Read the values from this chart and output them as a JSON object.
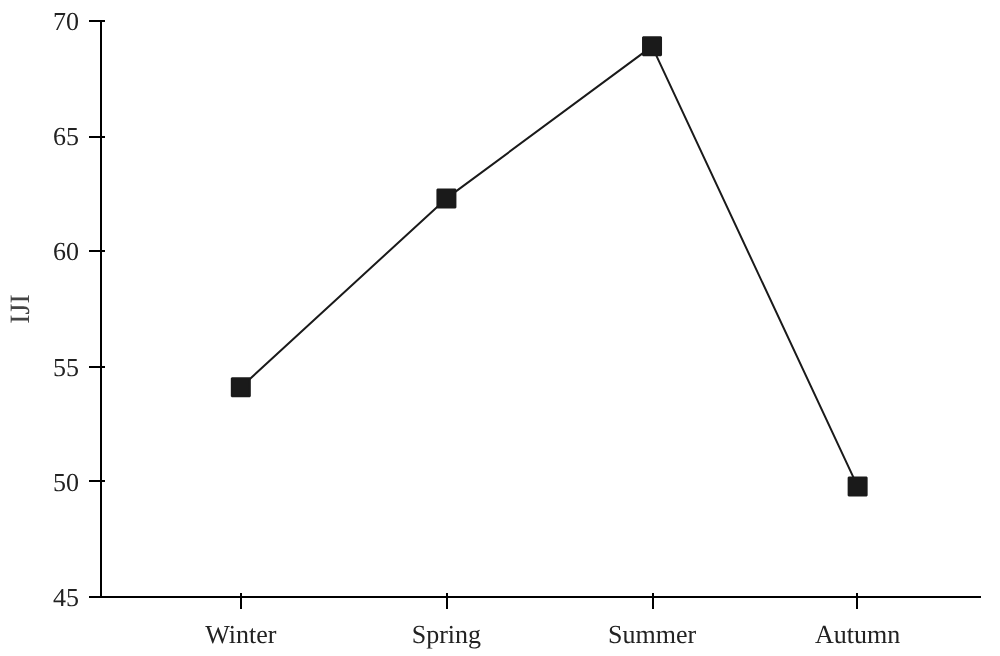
{
  "chart_data": {
    "type": "line",
    "ylabel": "IJI",
    "categories": [
      "Winter",
      "Spring",
      "Summer",
      "Autumn"
    ],
    "series": [
      {
        "color": "#1a1a1a",
        "values": [
          54.1,
          62.3,
          68.9,
          49.8
        ]
      }
    ],
    "ylim": [
      45,
      70
    ],
    "yticks": [
      45,
      50,
      55,
      60,
      65,
      70
    ],
    "marker": "square",
    "line_style": "solid",
    "grid": false
  }
}
